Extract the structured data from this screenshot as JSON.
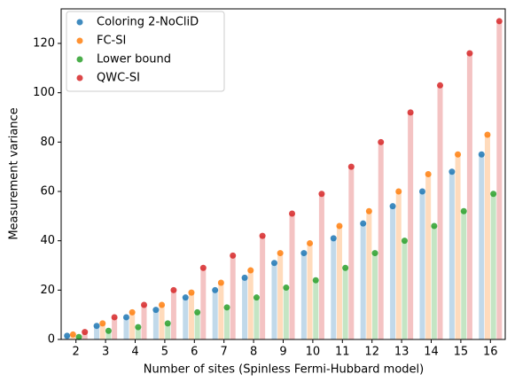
{
  "chart_data": {
    "type": "bar",
    "xlabel": "Number of sites (Spinless Fermi-Hubbard model)",
    "ylabel": "Measurement variance",
    "categories": [
      "2",
      "3",
      "4",
      "5",
      "6",
      "7",
      "8",
      "9",
      "10",
      "11",
      "12",
      "13",
      "14",
      "15",
      "16"
    ],
    "series": [
      {
        "name": "Coloring 2-NoCliD",
        "color": "#1f77b4",
        "values": [
          1.5,
          5.5,
          9,
          12,
          17,
          20,
          25,
          31,
          35,
          41,
          47,
          54,
          60,
          68,
          75
        ]
      },
      {
        "name": "FC-SI",
        "color": "#ff7f0e",
        "values": [
          2,
          6.5,
          11,
          14,
          19,
          23,
          28,
          35,
          39,
          46,
          52,
          60,
          67,
          75,
          83
        ]
      },
      {
        "name": "Lower bound",
        "color": "#2ca02c",
        "values": [
          1,
          3.5,
          5,
          6.5,
          11,
          13,
          17,
          21,
          24,
          29,
          35,
          40,
          46,
          52,
          59
        ]
      },
      {
        "name": "QWC-SI",
        "color": "#d62728",
        "values": [
          3,
          9,
          14,
          20,
          29,
          34,
          42,
          51,
          59,
          70,
          80,
          92,
          103,
          116,
          129
        ]
      }
    ],
    "ylim": [
      0,
      134
    ],
    "yticks": [
      0,
      20,
      40,
      60,
      80,
      100,
      120
    ],
    "legend": "upper left"
  }
}
